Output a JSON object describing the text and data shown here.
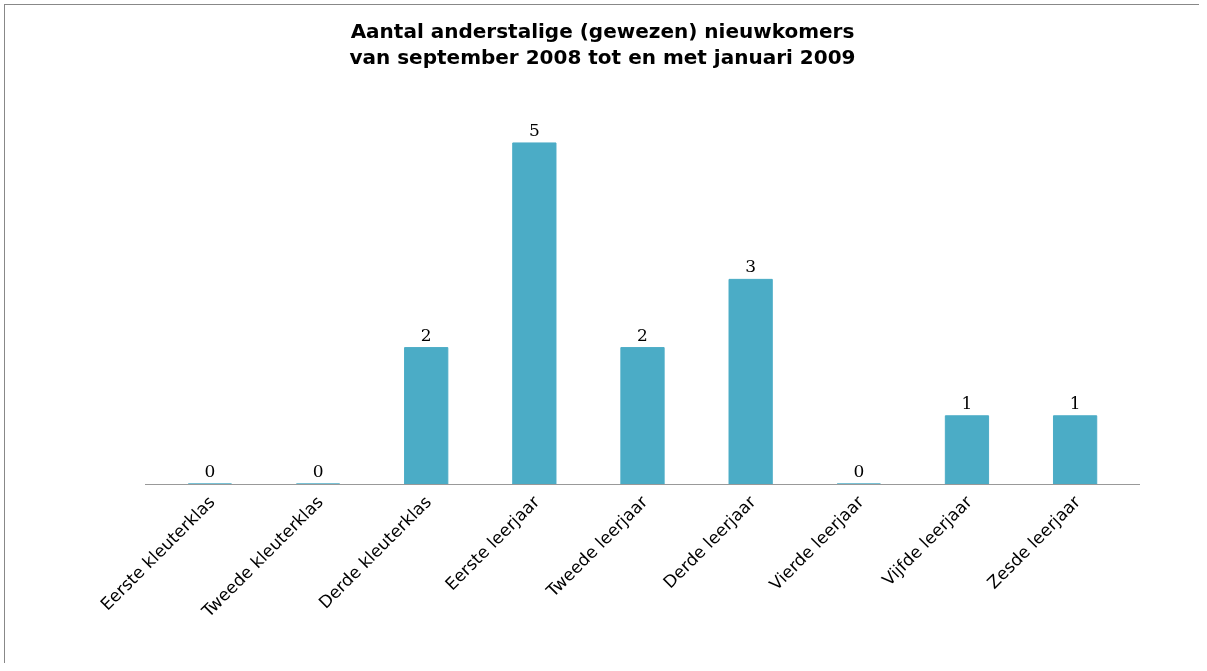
{
  "chart_data": {
    "type": "bar",
    "title": "Aantal anderstalige (gewezen) nieuwkomers\nvan september 2008 tot en met januari 2009",
    "categories": [
      "Eerste kleuterklas",
      "Tweede kleuterklas",
      "Derde kleuterklas",
      "Eerste leerjaar",
      "Tweede leerjaar",
      "Derde leerjaar",
      "Vierde leerjaar",
      "Vijfde leerjaar",
      "Zesde leerjaar"
    ],
    "values": [
      0,
      0,
      2,
      5,
      2,
      3,
      0,
      1,
      1
    ],
    "color": "#4bacc6",
    "data_labels": true,
    "grid": false,
    "legend": false
  }
}
